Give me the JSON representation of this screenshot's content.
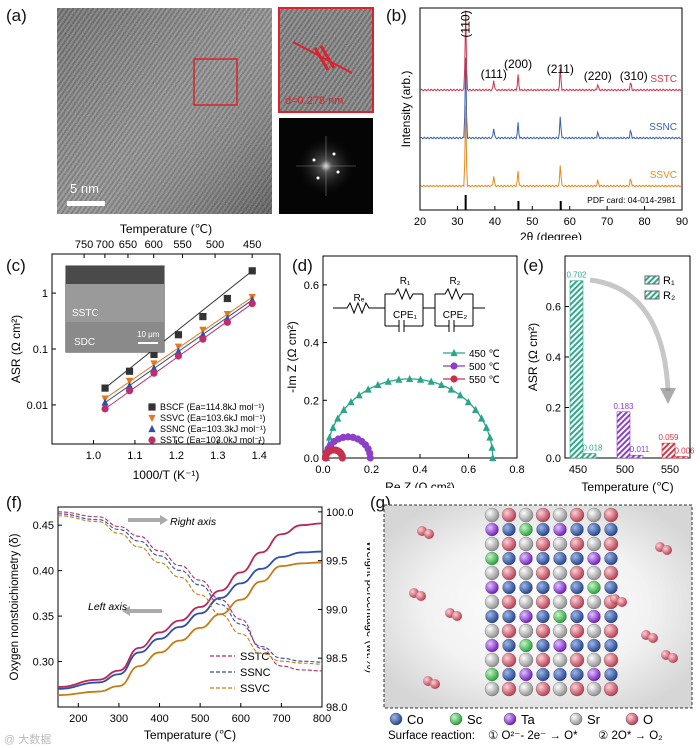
{
  "labels": {
    "a": "(a)",
    "b": "(b)",
    "c": "(c)",
    "d": "(d)",
    "e": "(e)",
    "f": "(f)",
    "g": "(g)"
  },
  "panel_a": {
    "scale_bar": "5 nm",
    "d_spacing": "d=0.278 nm"
  },
  "chart_data": [
    {
      "panel": "b",
      "type": "line",
      "xlabel": "2θ (degree)",
      "ylabel": "Intensity (arb.)",
      "xlim": [
        20,
        90
      ],
      "xticks": [
        20,
        30,
        40,
        50,
        60,
        70,
        80,
        90
      ],
      "peaks": [
        {
          "label": "(110)",
          "x": 32.2
        },
        {
          "label": "(111)",
          "x": 39.7
        },
        {
          "label": "(200)",
          "x": 46.2
        },
        {
          "label": "(211)",
          "x": 57.5
        },
        {
          "label": "(220)",
          "x": 67.5
        },
        {
          "label": "(310)",
          "x": 76.3
        }
      ],
      "ref_lines": [
        32.2,
        46.3,
        57.6
      ],
      "series": [
        {
          "name": "SSTC",
          "color": "#d0344a"
        },
        {
          "name": "SSNC",
          "color": "#3a5fb0"
        },
        {
          "name": "SSVC",
          "color": "#e58a1f"
        }
      ],
      "annotation": "PDF card: 04-014-2981"
    },
    {
      "panel": "c",
      "type": "scatter",
      "xlabel": "1000/T (K⁻¹)",
      "ylabel": "ASR (Ω cm²)",
      "top_label": "Temperature (℃)",
      "xlim": [
        0.9,
        1.45
      ],
      "ylim": [
        0.002,
        5
      ],
      "xticks": [
        1.0,
        1.1,
        1.2,
        1.3,
        1.4
      ],
      "yticks": [
        0.01,
        0.1,
        1
      ],
      "ytick_labels": [
        "0.01",
        "0.1",
        "1"
      ],
      "top_ticks": [
        750,
        700,
        650,
        600,
        550,
        500,
        450
      ],
      "inset_labels": {
        "film": "SSTC",
        "substrate": "SDC",
        "scale": "10 μm"
      },
      "x": [
        1.028,
        1.087,
        1.146,
        1.205,
        1.264,
        1.323,
        1.383
      ],
      "series": [
        {
          "name": "BSCF (Ea=114.8kJ mol⁻¹)",
          "color": "#333333",
          "marker": "square",
          "values": [
            0.02,
            0.04,
            0.08,
            0.18,
            0.38,
            0.8,
            2.5
          ]
        },
        {
          "name": "SSVC (Ea=103.6kJ mol⁻¹)",
          "color": "#e5781e",
          "marker": "tri-down",
          "values": [
            0.013,
            0.027,
            0.055,
            0.11,
            0.22,
            0.42,
            0.85
          ]
        },
        {
          "name": "SSNC (Ea=103.3kJ mol⁻¹)",
          "color": "#2d4fa6",
          "marker": "tri-up",
          "values": [
            0.011,
            0.022,
            0.045,
            0.09,
            0.18,
            0.35,
            0.75
          ]
        },
        {
          "name": "SSTC (Ea=103.0kJ mol⁻¹)",
          "color": "#c02e6a",
          "marker": "circle",
          "values": [
            0.0085,
            0.018,
            0.037,
            0.075,
            0.15,
            0.3,
            0.65
          ]
        }
      ]
    },
    {
      "panel": "d",
      "type": "scatter",
      "xlabel": "Re Z (Ω cm²)",
      "ylabel": "-Im Z (Ω cm²)",
      "xlim": [
        0,
        0.8
      ],
      "ylim": [
        0,
        0.7
      ],
      "xticks": [
        0.0,
        0.2,
        0.4,
        0.6,
        0.8
      ],
      "yticks": [
        0.0,
        0.2,
        0.4,
        0.6
      ],
      "circuit_labels": [
        "Rₑ",
        "R₁",
        "CPE₁",
        "R₂",
        "CPE₂"
      ],
      "series": [
        {
          "name": "450 ℃",
          "color": "#2aa58a",
          "marker": "tri-up",
          "arc": [
            0.015,
            0.7
          ]
        },
        {
          "name": "500 ℃",
          "color": "#8c3fc7",
          "marker": "circle",
          "arc": [
            0.012,
            0.195
          ]
        },
        {
          "name": "550 ℃",
          "color": "#c9304f",
          "marker": "circle",
          "arc": [
            0.01,
            0.08
          ]
        }
      ]
    },
    {
      "panel": "e",
      "type": "bar",
      "xlabel": "Temperature (℃)",
      "ylabel": "ASR (Ω cm²)",
      "ylim": [
        0,
        0.8
      ],
      "yticks": [
        0.0,
        0.2,
        0.4,
        0.6
      ],
      "categories": [
        "450",
        "500",
        "550"
      ],
      "series": [
        {
          "name": "R₁",
          "values": [
            0.702,
            0.183,
            0.059
          ],
          "labels": [
            "0.702",
            "0.183",
            "0.059"
          ]
        },
        {
          "name": "R₂",
          "values": [
            0.018,
            0.011,
            0.006
          ],
          "labels": [
            "0.018",
            "0.011",
            "0.006"
          ]
        }
      ],
      "colors": [
        "#2ea98c",
        "#8c3fc7",
        "#cf3a48"
      ]
    },
    {
      "panel": "f",
      "type": "line",
      "xlabel": "Temperature (℃)",
      "ylabel": "Oxygen nonstoichiometry (δ)",
      "ylabel_right": "Weight percentage (wt.%)",
      "xlim": [
        150,
        800
      ],
      "ylim": [
        0.25,
        0.47
      ],
      "ylim_right": [
        98.0,
        100.05
      ],
      "xticks": [
        200,
        300,
        400,
        500,
        600,
        700,
        800
      ],
      "yticks": [
        0.3,
        0.35,
        0.4,
        0.45
      ],
      "yticks_right": [
        98.0,
        98.5,
        99.0,
        99.5,
        100.0
      ],
      "annotations": [
        "Right axis",
        "Left axis"
      ],
      "series": [
        {
          "name": "SSTC",
          "color": "#b8285a",
          "left": [
            [
              150,
              0.272
            ],
            [
              250,
              0.28
            ],
            [
              300,
              0.29
            ],
            [
              350,
              0.315
            ],
            [
              400,
              0.332
            ],
            [
              450,
              0.345
            ],
            [
              500,
              0.36
            ],
            [
              550,
              0.378
            ],
            [
              600,
              0.398
            ],
            [
              650,
              0.42
            ],
            [
              700,
              0.44
            ],
            [
              750,
              0.45
            ],
            [
              800,
              0.452
            ]
          ],
          "right": [
            [
              150,
              100.0
            ],
            [
              250,
              99.95
            ],
            [
              300,
              99.85
            ],
            [
              350,
              99.75
            ],
            [
              400,
              99.6
            ],
            [
              450,
              99.45
            ],
            [
              500,
              99.3
            ],
            [
              550,
              99.1
            ],
            [
              600,
              98.9
            ],
            [
              650,
              98.6
            ],
            [
              700,
              98.42
            ],
            [
              750,
              98.38
            ],
            [
              800,
              98.37
            ]
          ]
        },
        {
          "name": "SSNC",
          "color": "#2f4fa8",
          "left": [
            [
              150,
              0.27
            ],
            [
              250,
              0.277
            ],
            [
              300,
              0.286
            ],
            [
              350,
              0.31
            ],
            [
              400,
              0.325
            ],
            [
              450,
              0.338
            ],
            [
              500,
              0.353
            ],
            [
              550,
              0.37
            ],
            [
              600,
              0.386
            ],
            [
              650,
              0.402
            ],
            [
              700,
              0.415
            ],
            [
              750,
              0.42
            ],
            [
              800,
              0.421
            ]
          ],
          "right": [
            [
              150,
              99.98
            ],
            [
              250,
              99.92
            ],
            [
              300,
              99.82
            ],
            [
              350,
              99.7
            ],
            [
              400,
              99.55
            ],
            [
              450,
              99.4
            ],
            [
              500,
              99.25
            ],
            [
              550,
              99.05
            ],
            [
              600,
              98.85
            ],
            [
              650,
              98.62
            ],
            [
              700,
              98.5
            ],
            [
              750,
              98.47
            ],
            [
              800,
              98.46
            ]
          ]
        },
        {
          "name": "SSVC",
          "color": "#c47d16",
          "left": [
            [
              150,
              0.263
            ],
            [
              250,
              0.267
            ],
            [
              300,
              0.273
            ],
            [
              350,
              0.295
            ],
            [
              400,
              0.31
            ],
            [
              450,
              0.323
            ],
            [
              500,
              0.337
            ],
            [
              550,
              0.352
            ],
            [
              600,
              0.368
            ],
            [
              650,
              0.388
            ],
            [
              700,
              0.405
            ],
            [
              750,
              0.408
            ],
            [
              800,
              0.409
            ]
          ],
          "right": [
            [
              150,
              99.96
            ],
            [
              250,
              99.9
            ],
            [
              300,
              99.78
            ],
            [
              350,
              99.64
            ],
            [
              400,
              99.48
            ],
            [
              450,
              99.33
            ],
            [
              500,
              99.15
            ],
            [
              550,
              98.95
            ],
            [
              600,
              98.75
            ],
            [
              650,
              98.55
            ],
            [
              700,
              98.47
            ],
            [
              750,
              98.45
            ],
            [
              800,
              98.44
            ]
          ]
        }
      ]
    }
  ],
  "panel_g": {
    "legend": [
      {
        "name": "Co",
        "color": "#1f4e9c"
      },
      {
        "name": "Sc",
        "color": "#3fbf4f"
      },
      {
        "name": "Ta",
        "color": "#8a2be2"
      },
      {
        "name": "Sr",
        "color": "#bdbdbd"
      },
      {
        "name": "O",
        "color": "#c24a5c"
      }
    ],
    "surface_prefix": "Surface reaction:",
    "reaction_1": "① O²⁻- 2e⁻ → O*",
    "reaction_2": "② 2O* → O₂"
  },
  "watermark": "@ 大数据"
}
